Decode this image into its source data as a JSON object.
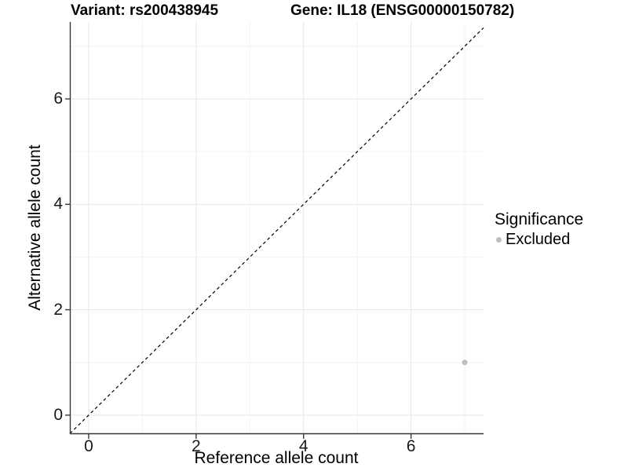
{
  "titles": {
    "variant": "Variant: rs200438945",
    "gene": "Gene: IL18 (ENSG00000150782)"
  },
  "axes": {
    "x": {
      "label": "Reference allele count",
      "tick_labels": [
        "0",
        "2",
        "4",
        "6"
      ]
    },
    "y": {
      "label": "Alternative allele count",
      "tick_labels": [
        "0",
        "2",
        "4",
        "6"
      ]
    }
  },
  "legend": {
    "title": "Significance",
    "items": [
      {
        "label": "Excluded",
        "color": "#bebebe"
      }
    ]
  },
  "colors": {
    "major_grid": "#e6e6e6",
    "minor_grid": "#f2f2f2",
    "axis_line": "#383838",
    "tick_mark": "#383838",
    "reference_line": "#000000",
    "point": "#bebebe"
  },
  "chart_data": {
    "type": "scatter",
    "title": "Variant: rs200438945 | Gene: IL18 (ENSG00000150782)",
    "xlabel": "Reference allele count",
    "ylabel": "Alternative allele count",
    "xlim": [
      -0.35,
      7.35
    ],
    "ylim": [
      -0.36,
      7.46
    ],
    "x_major_ticks": [
      0,
      2,
      4,
      6
    ],
    "x_minor_gridlines": [
      1,
      3,
      5,
      7
    ],
    "y_major_ticks": [
      0,
      2,
      4,
      6
    ],
    "y_minor_gridlines": [
      1,
      3,
      5,
      7
    ],
    "grid": true,
    "legend_position": "right",
    "series": [
      {
        "name": "Excluded",
        "color": "#bebebe",
        "points": [
          {
            "x": 7,
            "y": 1
          }
        ]
      }
    ],
    "reference_line": {
      "type": "identity",
      "slope": 1,
      "intercept": 0,
      "style": "dashed",
      "color": "#000000"
    }
  }
}
